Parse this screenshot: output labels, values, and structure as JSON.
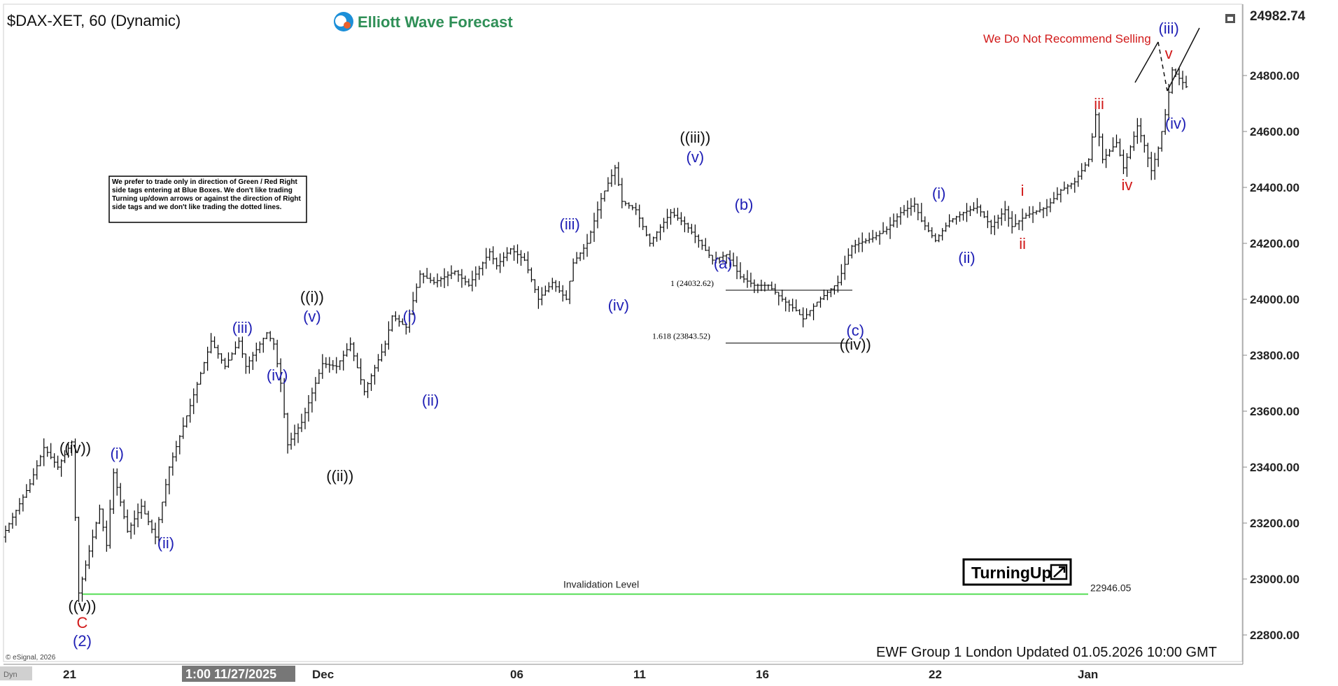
{
  "window": {
    "title": "$DAX-XET, 60 (Dynamic)",
    "brand": "Elliott Wave Forecast",
    "copyright": "© eSignal, 2026",
    "footer": "EWF Group 1 London Updated 01.05.2026 10:00 GMT",
    "corner_left": "Dyn",
    "disclaimer": "We prefer to trade only in direction of Green / Red Right side tags entering at Blue Boxes. We don't like trading Turning up/down arrows or against the direction of Right side tags and we don't like trading the dotted lines.",
    "recommend": "We Do Not Recommend Selling",
    "turning": "TurningUp"
  },
  "colors": {
    "blue": "#1f1fb5",
    "red": "#d11919",
    "black": "#111111",
    "green": "#55dd55",
    "bar": "#000000"
  },
  "chart_data": {
    "type": "ohlc",
    "symbol": "$DAX-XET",
    "interval": "60 (Dynamic)",
    "ylim": [
      22700,
      25050
    ],
    "y_ticks": [
      22800,
      23000,
      23200,
      23400,
      23600,
      23800,
      24000,
      24200,
      24400,
      24600,
      24800
    ],
    "y_tick_labels": [
      "22800.00",
      "23000.00",
      "23200.00",
      "23400.00",
      "23600.00",
      "23800.00",
      "24000.00",
      "24200.00",
      "24400.00",
      "24600.00",
      "24800.00"
    ],
    "last_price": "24982.74",
    "x_labels": [
      "21",
      "Dec",
      "06",
      "11",
      "16",
      "22",
      "Jan"
    ],
    "cursor_label": "1:00 11/27/2025",
    "invalidation": {
      "label": "Invalidation Level",
      "value": "22946.05",
      "price": 22946.05
    },
    "fib_levels": [
      {
        "label": "1 (24032.62)",
        "price": 24032.62
      },
      {
        "label": "1.618 (23843.52)",
        "price": 23843.52
      }
    ],
    "price_path": [
      [
        0,
        23150
      ],
      [
        4,
        23340
      ],
      [
        6,
        23470
      ],
      [
        8,
        23400
      ],
      [
        10,
        23490
      ],
      [
        11,
        22950
      ],
      [
        14,
        23250
      ],
      [
        15,
        23120
      ],
      [
        16,
        23380
      ],
      [
        18,
        23170
      ],
      [
        20,
        23260
      ],
      [
        22,
        23150
      ],
      [
        24,
        23400
      ],
      [
        27,
        23620
      ],
      [
        30,
        23850
      ],
      [
        32,
        23760
      ],
      [
        34,
        23850
      ],
      [
        35,
        23760
      ],
      [
        38,
        23880
      ],
      [
        39,
        23840
      ],
      [
        40,
        23700
      ],
      [
        41,
        23480
      ],
      [
        43,
        23560
      ],
      [
        46,
        23770
      ],
      [
        48,
        23760
      ],
      [
        50,
        23840
      ],
      [
        52,
        23670
      ],
      [
        55,
        23840
      ],
      [
        56,
        23940
      ],
      [
        58,
        23900
      ],
      [
        60,
        24090
      ],
      [
        62,
        24060
      ],
      [
        65,
        24100
      ],
      [
        67,
        24050
      ],
      [
        70,
        24170
      ],
      [
        71,
        24120
      ],
      [
        73,
        24180
      ],
      [
        75,
        24140
      ],
      [
        77,
        24000
      ],
      [
        79,
        24060
      ],
      [
        81,
        24000
      ],
      [
        82,
        24130
      ],
      [
        84,
        24200
      ],
      [
        86,
        24360
      ],
      [
        88,
        24470
      ],
      [
        89,
        24350
      ],
      [
        91,
        24320
      ],
      [
        93,
        24200
      ],
      [
        94,
        24240
      ],
      [
        96,
        24310
      ],
      [
        98,
        24270
      ],
      [
        100,
        24210
      ],
      [
        102,
        24140
      ],
      [
        104,
        24160
      ],
      [
        106,
        24080
      ],
      [
        108,
        24050
      ],
      [
        110,
        24050
      ],
      [
        112,
        24000
      ],
      [
        114,
        23960
      ],
      [
        115,
        23930
      ],
      [
        117,
        23990
      ],
      [
        120,
        24060
      ],
      [
        122,
        24190
      ],
      [
        125,
        24220
      ],
      [
        127,
        24250
      ],
      [
        129,
        24310
      ],
      [
        131,
        24340
      ],
      [
        132,
        24280
      ],
      [
        134,
        24210
      ],
      [
        136,
        24280
      ],
      [
        138,
        24310
      ],
      [
        140,
        24330
      ],
      [
        142,
        24260
      ],
      [
        144,
        24320
      ],
      [
        145,
        24260
      ],
      [
        147,
        24300
      ],
      [
        150,
        24330
      ],
      [
        152,
        24390
      ],
      [
        154,
        24420
      ],
      [
        156,
        24500
      ],
      [
        157,
        24660
      ],
      [
        158,
        24500
      ],
      [
        160,
        24560
      ],
      [
        161,
        24470
      ],
      [
        163,
        24620
      ],
      [
        164,
        24550
      ],
      [
        165,
        24460
      ],
      [
        166,
        24540
      ],
      [
        167,
        24660
      ],
      [
        168,
        24820
      ],
      [
        170,
        24760
      ]
    ],
    "labels": [
      {
        "text": "((iv))",
        "idx": 10,
        "price": 23450,
        "color": "black",
        "size": "big"
      },
      {
        "text": "((v))",
        "idx": 11,
        "price": 22885,
        "color": "black",
        "size": "big"
      },
      {
        "text": "C",
        "idx": 11,
        "price": 22825,
        "color": "red",
        "size": "big"
      },
      {
        "text": "(2)",
        "idx": 11,
        "price": 22760,
        "color": "blue",
        "size": "big"
      },
      {
        "text": "(i)",
        "idx": 16,
        "price": 23430,
        "color": "blue",
        "size": "big"
      },
      {
        "text": "(ii)",
        "idx": 23,
        "price": 23110,
        "color": "blue",
        "size": "big"
      },
      {
        "text": "(iii)",
        "idx": 34,
        "price": 23880,
        "color": "blue",
        "size": "big"
      },
      {
        "text": "(iv)",
        "idx": 39,
        "price": 23710,
        "color": "blue",
        "size": "big"
      },
      {
        "text": "(v)",
        "idx": 44,
        "price": 23920,
        "color": "blue",
        "size": "big"
      },
      {
        "text": "((i))",
        "idx": 44,
        "price": 23990,
        "color": "black",
        "size": "big"
      },
      {
        "text": "((ii))",
        "idx": 48,
        "price": 23350,
        "color": "black",
        "size": "big"
      },
      {
        "text": "(i)",
        "idx": 58,
        "price": 23920,
        "color": "blue",
        "size": "big"
      },
      {
        "text": "(ii)",
        "idx": 61,
        "price": 23620,
        "color": "blue",
        "size": "big"
      },
      {
        "text": "(iii)",
        "idx": 81,
        "price": 24250,
        "color": "blue",
        "size": "big"
      },
      {
        "text": "(iv)",
        "idx": 88,
        "price": 23960,
        "color": "blue",
        "size": "big"
      },
      {
        "text": "(v)",
        "idx": 99,
        "price": 24490,
        "color": "blue",
        "size": "big"
      },
      {
        "text": "((iii))",
        "idx": 99,
        "price": 24560,
        "color": "black",
        "size": "big"
      },
      {
        "text": "(a)",
        "idx": 103,
        "price": 24110,
        "color": "blue",
        "size": "big"
      },
      {
        "text": "(b)",
        "idx": 106,
        "price": 24320,
        "color": "blue",
        "size": "big"
      },
      {
        "text": "(c)",
        "idx": 122,
        "price": 23870,
        "color": "blue",
        "size": "big"
      },
      {
        "text": "((iv))",
        "idx": 122,
        "price": 23820,
        "color": "black",
        "size": "big"
      },
      {
        "text": "(i)",
        "idx": 134,
        "price": 24360,
        "color": "blue",
        "size": "big"
      },
      {
        "text": "(ii)",
        "idx": 138,
        "price": 24130,
        "color": "blue",
        "size": "big"
      },
      {
        "text": "i",
        "idx": 146,
        "price": 24370,
        "color": "red",
        "size": "big"
      },
      {
        "text": "ii",
        "idx": 146,
        "price": 24180,
        "color": "red",
        "size": "big"
      },
      {
        "text": "iii",
        "idx": 157,
        "price": 24680,
        "color": "red",
        "size": "big"
      },
      {
        "text": "iv",
        "idx": 161,
        "price": 24390,
        "color": "red",
        "size": "big"
      },
      {
        "text": "v",
        "idx": 167,
        "price": 24860,
        "color": "red",
        "size": "big"
      },
      {
        "text": "(iii)",
        "idx": 167,
        "price": 24950,
        "color": "blue",
        "size": "big"
      },
      {
        "text": "(iv)",
        "idx": 168,
        "price": 24610,
        "color": "blue",
        "size": "big"
      }
    ]
  }
}
